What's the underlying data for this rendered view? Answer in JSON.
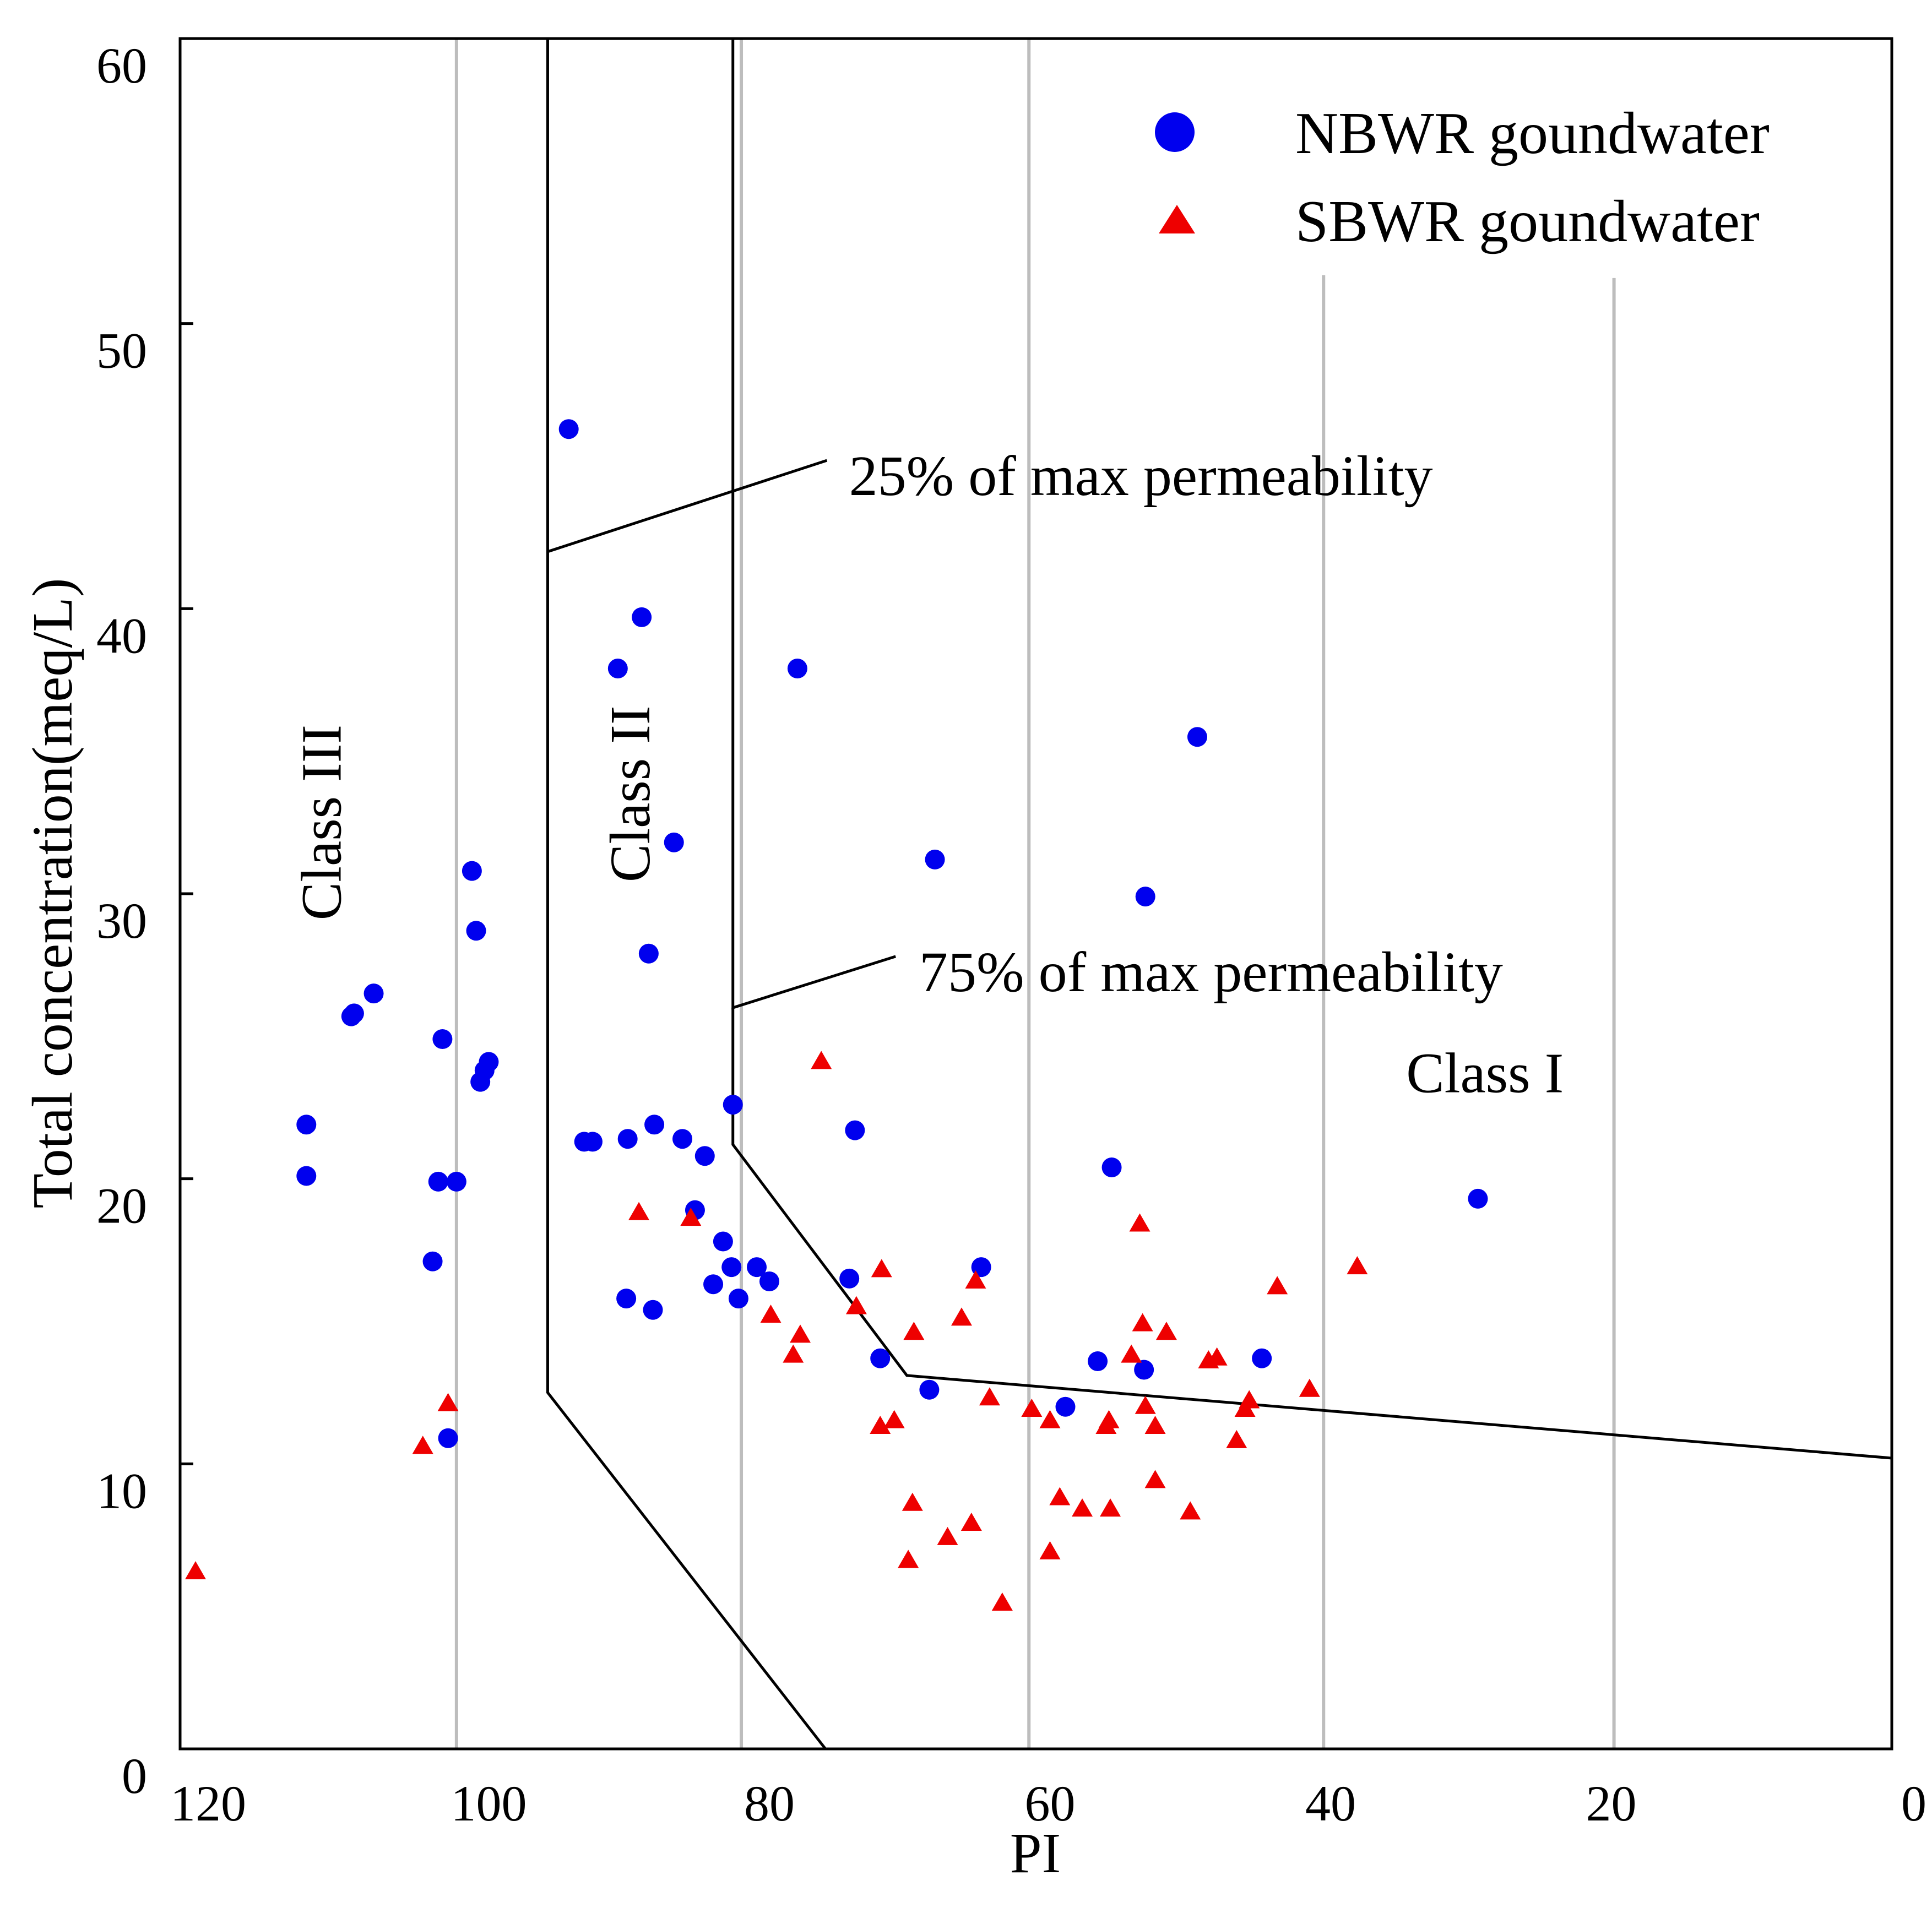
{
  "colors": {
    "nbwr": "#0000ee",
    "sbwr": "#ee0000",
    "grid": "#bdbdbd",
    "lines": "#000000"
  },
  "chart_data": {
    "type": "scatter",
    "xlabel": "PI",
    "ylabel": "Total concentration(meq/L)",
    "xlim": [
      122,
      0
    ],
    "ylim": [
      0,
      60
    ],
    "x_ticks": [
      120,
      100,
      80,
      60,
      40,
      20,
      0
    ],
    "y_ticks": [
      0,
      10,
      20,
      30,
      40,
      50,
      60
    ],
    "x_tick_labels": [
      "120",
      "100",
      "80",
      "60",
      "40",
      "20",
      "0"
    ],
    "y_tick_labels": [
      "0",
      "10",
      "20",
      "30",
      "40",
      "50",
      "60"
    ],
    "grid": {
      "vertical": true,
      "grid_x": [
        102.3,
        82.0,
        61.5,
        40.5,
        19.8
      ],
      "grid_x_top": [
        60,
        60,
        60,
        51.7,
        51.6
      ]
    },
    "legend": {
      "position": "top-right",
      "entries": [
        {
          "series": "NBWR",
          "label": "NBWR goundwater",
          "marker": "circle"
        },
        {
          "series": "SBWR",
          "label": "SBWR goundwater",
          "marker": "triangle"
        }
      ]
    },
    "class_labels": [
      {
        "id": "class-iii",
        "text": "Class III",
        "x": 111.5,
        "y": 32.5,
        "rotate": -90
      },
      {
        "id": "class-ii",
        "text": "Class II",
        "x": 89.5,
        "y": 33.5,
        "rotate": -90
      },
      {
        "id": "class-i",
        "text": "Class I",
        "x": 29.0,
        "y": 23.5,
        "rotate": 0
      }
    ],
    "annotations": [
      {
        "id": "annot-25",
        "text": "25% of max permeability",
        "x": 75.5,
        "y": 44.6
      },
      {
        "id": "annot-75",
        "text": "75% of max permeability",
        "x": 70.5,
        "y": 27.2
      }
    ],
    "boundary_lines": [
      {
        "id": "boundary-class-iii-ii",
        "points": [
          [
            95.8,
            60
          ],
          [
            95.8,
            42.0
          ],
          [
            75.9,
            45.2
          ]
        ]
      },
      {
        "id": "boundary-class-iii-ii-lower",
        "points": [
          [
            95.8,
            42.0
          ],
          [
            95.8,
            12.5
          ],
          [
            76.0,
            0
          ]
        ]
      },
      {
        "id": "boundary-class-ii-i",
        "points": [
          [
            82.6,
            60
          ],
          [
            82.6,
            26.0
          ],
          [
            71.0,
            27.8
          ]
        ]
      },
      {
        "id": "boundary-class-ii-i-lower",
        "points": [
          [
            82.6,
            26.0
          ],
          [
            82.6,
            21.2
          ],
          [
            70.2,
            13.1
          ],
          [
            0,
            10.2
          ]
        ]
      }
    ],
    "series": [
      {
        "name": "NBWR",
        "label": "NBWR goundwater",
        "marker": "circle",
        "points": [
          {
            "x": 113.0,
            "y": 20.1
          },
          {
            "x": 113.0,
            "y": 21.9
          },
          {
            "x": 109.8,
            "y": 25.7
          },
          {
            "x": 109.6,
            "y": 25.8
          },
          {
            "x": 108.2,
            "y": 26.5
          },
          {
            "x": 104.0,
            "y": 17.1
          },
          {
            "x": 103.6,
            "y": 19.9
          },
          {
            "x": 103.3,
            "y": 24.9
          },
          {
            "x": 102.9,
            "y": 10.9
          },
          {
            "x": 102.3,
            "y": 19.9
          },
          {
            "x": 101.2,
            "y": 30.8
          },
          {
            "x": 100.9,
            "y": 28.7
          },
          {
            "x": 100.6,
            "y": 23.4
          },
          {
            "x": 100.3,
            "y": 23.8
          },
          {
            "x": 100.0,
            "y": 24.1
          },
          {
            "x": 94.3,
            "y": 46.3
          },
          {
            "x": 93.2,
            "y": 21.3
          },
          {
            "x": 92.6,
            "y": 21.3
          },
          {
            "x": 90.8,
            "y": 37.9
          },
          {
            "x": 90.2,
            "y": 15.8
          },
          {
            "x": 90.1,
            "y": 21.4
          },
          {
            "x": 89.1,
            "y": 39.7
          },
          {
            "x": 88.6,
            "y": 27.9
          },
          {
            "x": 88.3,
            "y": 15.4
          },
          {
            "x": 88.2,
            "y": 21.9
          },
          {
            "x": 86.8,
            "y": 31.8
          },
          {
            "x": 86.2,
            "y": 21.4
          },
          {
            "x": 85.3,
            "y": 18.9
          },
          {
            "x": 84.6,
            "y": 20.8
          },
          {
            "x": 84.0,
            "y": 16.3
          },
          {
            "x": 83.3,
            "y": 17.8
          },
          {
            "x": 82.7,
            "y": 16.9
          },
          {
            "x": 82.6,
            "y": 22.6
          },
          {
            "x": 82.2,
            "y": 15.8
          },
          {
            "x": 80.9,
            "y": 16.9
          },
          {
            "x": 80.0,
            "y": 16.4
          },
          {
            "x": 78.0,
            "y": 37.9
          },
          {
            "x": 74.3,
            "y": 16.5
          },
          {
            "x": 73.9,
            "y": 21.7
          },
          {
            "x": 72.1,
            "y": 13.7
          },
          {
            "x": 68.6,
            "y": 12.6
          },
          {
            "x": 68.2,
            "y": 31.2
          },
          {
            "x": 64.9,
            "y": 16.9
          },
          {
            "x": 58.9,
            "y": 12.0
          },
          {
            "x": 56.6,
            "y": 13.6
          },
          {
            "x": 55.6,
            "y": 20.4
          },
          {
            "x": 53.3,
            "y": 13.3
          },
          {
            "x": 53.2,
            "y": 29.9
          },
          {
            "x": 49.5,
            "y": 35.5
          },
          {
            "x": 44.9,
            "y": 13.7
          },
          {
            "x": 29.5,
            "y": 19.3
          }
        ]
      },
      {
        "name": "SBWR",
        "label": "SBWR goundwater",
        "marker": "triangle",
        "points": [
          {
            "x": 120.9,
            "y": 6.2
          },
          {
            "x": 104.7,
            "y": 10.6
          },
          {
            "x": 102.9,
            "y": 12.1
          },
          {
            "x": 89.3,
            "y": 18.8
          },
          {
            "x": 85.6,
            "y": 18.6
          },
          {
            "x": 79.9,
            "y": 15.2
          },
          {
            "x": 78.3,
            "y": 13.8
          },
          {
            "x": 77.8,
            "y": 14.5
          },
          {
            "x": 76.3,
            "y": 24.1
          },
          {
            "x": 73.8,
            "y": 15.5
          },
          {
            "x": 72.1,
            "y": 11.3
          },
          {
            "x": 72.0,
            "y": 16.8
          },
          {
            "x": 71.1,
            "y": 11.5
          },
          {
            "x": 70.1,
            "y": 6.6
          },
          {
            "x": 69.8,
            "y": 8.6
          },
          {
            "x": 69.7,
            "y": 14.6
          },
          {
            "x": 67.3,
            "y": 7.4
          },
          {
            "x": 66.3,
            "y": 15.1
          },
          {
            "x": 65.6,
            "y": 7.9
          },
          {
            "x": 65.3,
            "y": 16.4
          },
          {
            "x": 64.3,
            "y": 12.3
          },
          {
            "x": 63.4,
            "y": 5.1
          },
          {
            "x": 61.3,
            "y": 11.9
          },
          {
            "x": 60.0,
            "y": 11.5
          },
          {
            "x": 60.0,
            "y": 6.9
          },
          {
            "x": 59.3,
            "y": 8.8
          },
          {
            "x": 57.7,
            "y": 8.4
          },
          {
            "x": 56.0,
            "y": 11.3
          },
          {
            "x": 55.8,
            "y": 11.5
          },
          {
            "x": 55.7,
            "y": 8.4
          },
          {
            "x": 54.2,
            "y": 13.8
          },
          {
            "x": 53.6,
            "y": 18.4
          },
          {
            "x": 53.4,
            "y": 14.9
          },
          {
            "x": 53.2,
            "y": 12.0
          },
          {
            "x": 52.5,
            "y": 9.4
          },
          {
            "x": 52.5,
            "y": 11.3
          },
          {
            "x": 51.7,
            "y": 14.6
          },
          {
            "x": 50.0,
            "y": 8.3
          },
          {
            "x": 48.7,
            "y": 13.6
          },
          {
            "x": 48.1,
            "y": 13.7
          },
          {
            "x": 46.7,
            "y": 10.8
          },
          {
            "x": 46.1,
            "y": 11.9
          },
          {
            "x": 45.8,
            "y": 12.2
          },
          {
            "x": 43.8,
            "y": 16.2
          },
          {
            "x": 41.5,
            "y": 12.6
          },
          {
            "x": 38.1,
            "y": 16.9
          }
        ]
      }
    ]
  }
}
